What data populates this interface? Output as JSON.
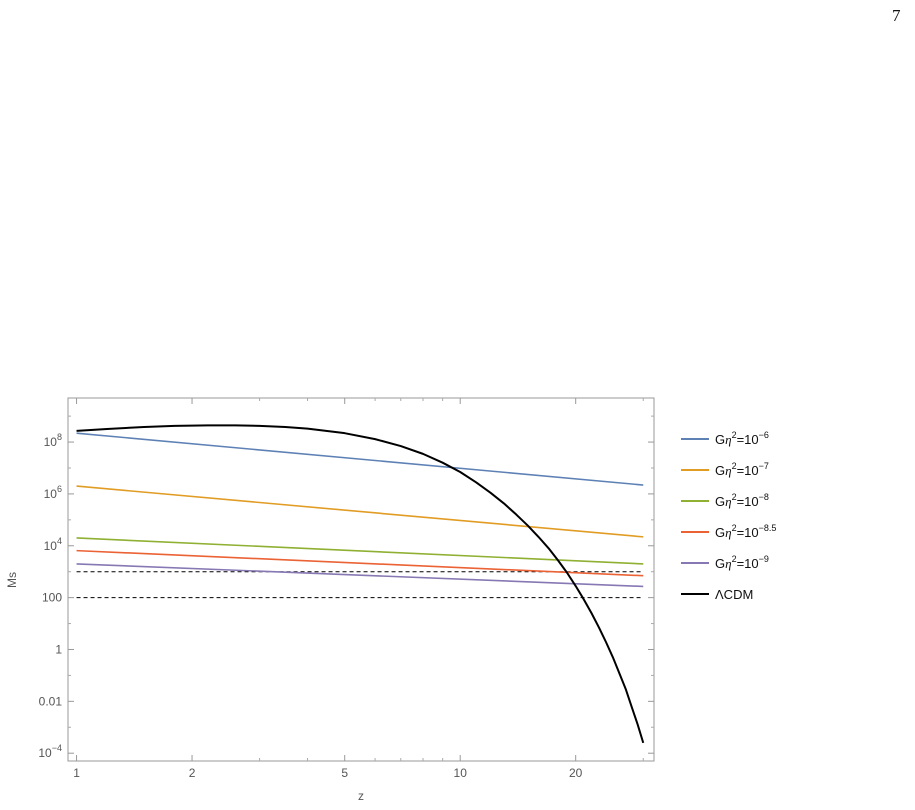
{
  "page": {
    "number": "7"
  },
  "chart_data": {
    "type": "line",
    "title": "",
    "xlabel": "z",
    "ylabel": "Ms",
    "x_scale": "log",
    "y_scale": "log",
    "xlim": [
      0.95,
      32
    ],
    "ylim": [
      5e-05,
      5000000000
    ],
    "x_ticks": [
      {
        "value": 1,
        "label": "1"
      },
      {
        "value": 2,
        "label": "2"
      },
      {
        "value": 5,
        "label": "5"
      },
      {
        "value": 10,
        "label": "10"
      },
      {
        "value": 20,
        "label": "20"
      }
    ],
    "y_ticks": [
      {
        "value": 0.0001,
        "base": "10",
        "exp": "−4"
      },
      {
        "value": 0.01,
        "base": "0.01",
        "exp": ""
      },
      {
        "value": 1,
        "base": "1",
        "exp": ""
      },
      {
        "value": 100,
        "base": "100",
        "exp": ""
      },
      {
        "value": 10000,
        "base": "10",
        "exp": "4"
      },
      {
        "value": 1000000,
        "base": "10",
        "exp": "6"
      },
      {
        "value": 100000000,
        "base": "10",
        "exp": "8"
      }
    ],
    "grid": false,
    "legend_position": "right",
    "series": [
      {
        "name": "Gη²=10⁻⁶",
        "legend": {
          "pre": "G",
          "eta": "η",
          "sup1": "2",
          "mid": "=10",
          "sup2": "−6"
        },
        "color": "#5e81b5",
        "x": [
          1,
          30
        ],
        "y": [
          220000000,
          2200000
        ]
      },
      {
        "name": "Gη²=10⁻⁷",
        "legend": {
          "pre": "G",
          "eta": "η",
          "sup1": "2",
          "mid": "=10",
          "sup2": "−7"
        },
        "color": "#e19c24",
        "x": [
          1,
          30
        ],
        "y": [
          2000000,
          22000
        ]
      },
      {
        "name": "Gη²=10⁻⁸",
        "legend": {
          "pre": "G",
          "eta": "η",
          "sup1": "2",
          "mid": "=10",
          "sup2": "−8"
        },
        "color": "#8fb032",
        "x": [
          1,
          30
        ],
        "y": [
          20000,
          2000
        ]
      },
      {
        "name": "Gη²=10⁻⁸·⁵",
        "legend": {
          "pre": "G",
          "eta": "η",
          "sup1": "2",
          "mid": "=10",
          "sup2": "−8.5"
        },
        "color": "#eb6235",
        "x": [
          1,
          30
        ],
        "y": [
          6500,
          700
        ]
      },
      {
        "name": "Gη²=10⁻⁹",
        "legend": {
          "pre": "G",
          "eta": "η",
          "sup1": "2",
          "mid": "=10",
          "sup2": "−9"
        },
        "color": "#8778b3",
        "x": [
          1,
          30
        ],
        "y": [
          2000,
          270
        ]
      },
      {
        "name": "ΛCDM",
        "legend": {
          "pre": "ΛCDM",
          "eta": "",
          "sup1": "",
          "mid": "",
          "sup2": ""
        },
        "color": "#000000",
        "x": [
          1,
          1.2,
          1.5,
          1.8,
          2.2,
          2.6,
          3,
          3.5,
          4,
          5,
          6,
          7,
          8,
          9,
          10,
          11,
          12,
          13,
          14,
          15,
          16,
          17,
          18,
          19,
          20,
          21,
          22,
          23,
          24,
          25,
          26,
          27,
          28,
          29,
          30
        ],
        "y": [
          270000000,
          320000000,
          380000000,
          420000000,
          440000000,
          440000000,
          420000000,
          380000000,
          330000000,
          220000000,
          130000000,
          70000000,
          35000000,
          16000000,
          7000000,
          2800000,
          1100000,
          430000,
          160000,
          60000,
          22000,
          8000,
          2700,
          900,
          280,
          85,
          25,
          7,
          1.9,
          0.5,
          0.12,
          0.03,
          0.006,
          0.0013,
          0.00025
        ]
      }
    ],
    "reference_lines": [
      {
        "y": 1000,
        "style": "dashed",
        "color": "#000000"
      },
      {
        "y": 100,
        "style": "dashed",
        "color": "#000000"
      }
    ]
  }
}
